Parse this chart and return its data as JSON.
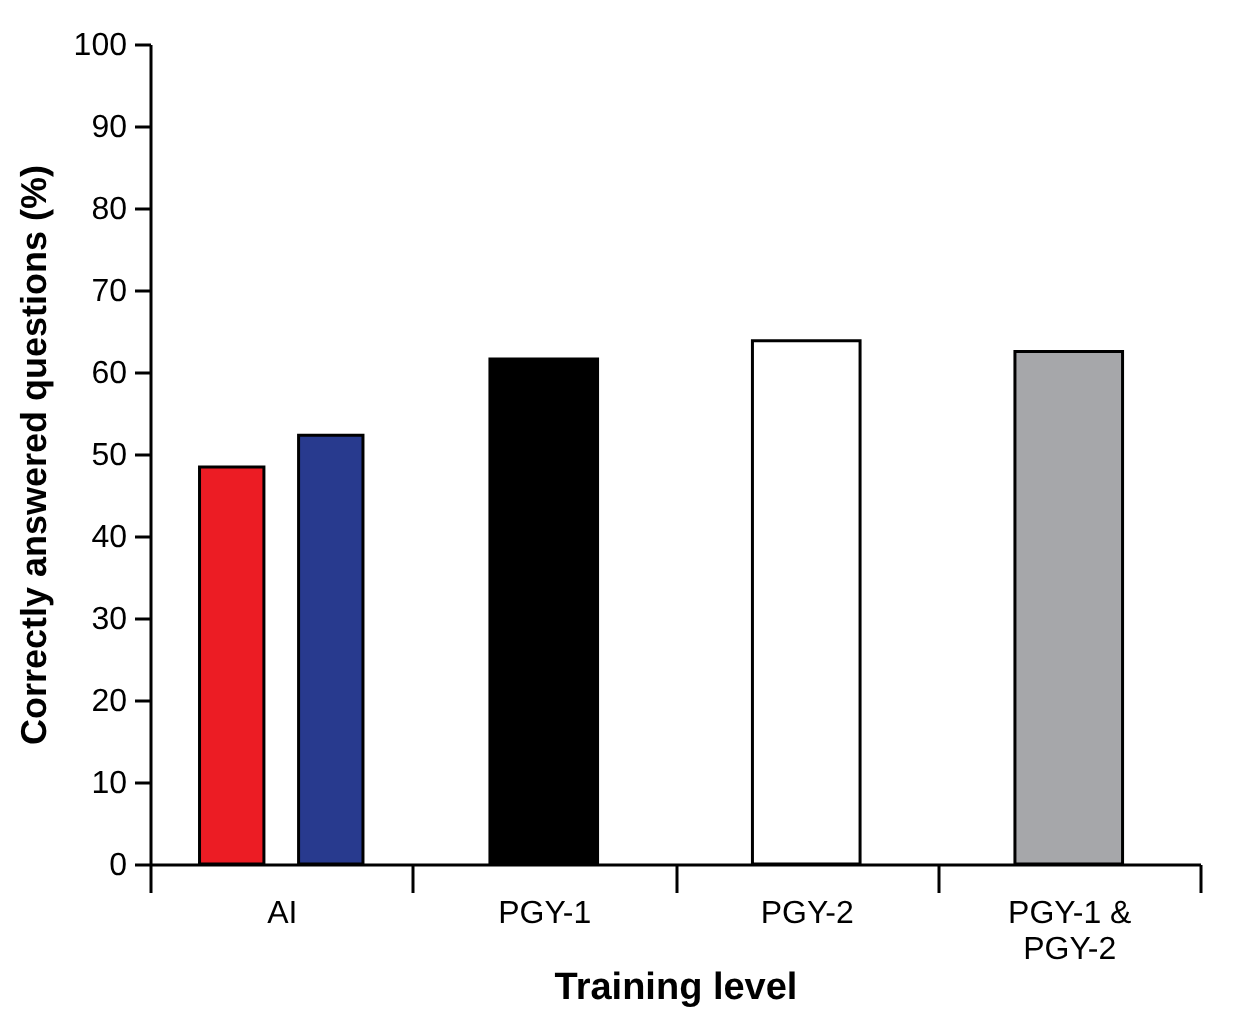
{
  "chart_data": {
    "type": "bar",
    "xlabel": "Training level",
    "ylabel": "Correctly answered questions (%)",
    "categories": [
      "AI",
      "PGY-1",
      "PGY-2",
      "PGY-1 & PGY-2"
    ],
    "series": [
      {
        "color": "#ec1c24",
        "values": [
          48.4,
          null,
          null,
          null
        ]
      },
      {
        "color": "#283a8e",
        "values": [
          52.3,
          null,
          null,
          null
        ]
      },
      {
        "colors": [
          null,
          "#000000",
          "#ffffff",
          "#a6a7aa"
        ],
        "values": [
          null,
          61.6,
          63.8,
          62.5
        ]
      }
    ],
    "ylim": [
      0,
      100
    ],
    "yticks": [
      0,
      10,
      20,
      30,
      40,
      50,
      60,
      70,
      80,
      90,
      100
    ]
  }
}
